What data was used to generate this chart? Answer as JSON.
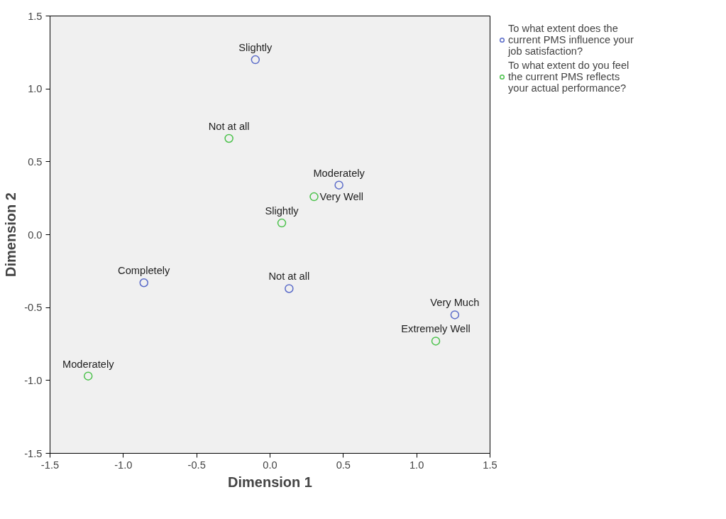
{
  "chart_data": {
    "type": "scatter",
    "xlabel": "Dimension 1",
    "ylabel": "Dimension 2",
    "xlim": [
      -1.5,
      1.5
    ],
    "ylim": [
      -1.5,
      1.5
    ],
    "xticks": [
      {
        "value": -1.5,
        "label": "-1.5"
      },
      {
        "value": -1.0,
        "label": "-1.0"
      },
      {
        "value": -0.5,
        "label": "-0.5"
      },
      {
        "value": 0.0,
        "label": "0.0"
      },
      {
        "value": 0.5,
        "label": "0.5"
      },
      {
        "value": 1.0,
        "label": "1.0"
      },
      {
        "value": 1.5,
        "label": "1.5"
      }
    ],
    "yticks": [
      {
        "value": -1.5,
        "label": "-1.5"
      },
      {
        "value": -1.0,
        "label": "-1.0"
      },
      {
        "value": -0.5,
        "label": "-0.5"
      },
      {
        "value": 0.0,
        "label": "0.0"
      },
      {
        "value": 0.5,
        "label": "0.5"
      },
      {
        "value": 1.0,
        "label": "1.0"
      },
      {
        "value": 1.5,
        "label": "1.5"
      }
    ],
    "grid": false,
    "legend": "top right",
    "marker": "circle",
    "series": [
      {
        "name": "To what extent does the current PMS influence your job satisfaction?",
        "color": "#5b6cc9",
        "x": [
          -0.1,
          0.47,
          -0.86,
          0.13,
          1.26
        ],
        "values": [
          1.2,
          0.34,
          -0.33,
          -0.37,
          -0.55
        ]
      },
      {
        "name": "To what extent do you feel the current PMS reflects your actual performance?",
        "color": "#4cc24c",
        "x": [
          -0.28,
          0.3,
          0.08,
          1.13,
          -1.24
        ],
        "values": [
          0.66,
          0.26,
          0.08,
          -0.73,
          -0.97
        ]
      }
    ],
    "annotations": [
      {
        "text": "Slightly",
        "x": -0.1,
        "y": 1.2
      },
      {
        "text": "Moderately",
        "x": 0.47,
        "y": 0.34
      },
      {
        "text": "Completely",
        "x": -0.86,
        "y": -0.33
      },
      {
        "text": "Not at all",
        "x": 0.13,
        "y": -0.37
      },
      {
        "text": "Very Much",
        "x": 1.26,
        "y": -0.55
      },
      {
        "text": "Not at all",
        "x": -0.28,
        "y": 0.66
      },
      {
        "text": "Very Well",
        "x": 0.3,
        "y": 0.26
      },
      {
        "text": "Slightly",
        "x": 0.08,
        "y": 0.08
      },
      {
        "text": "Extremely Well",
        "x": 1.13,
        "y": -0.73
      },
      {
        "text": "Moderately",
        "x": -1.24,
        "y": -0.97
      }
    ]
  }
}
